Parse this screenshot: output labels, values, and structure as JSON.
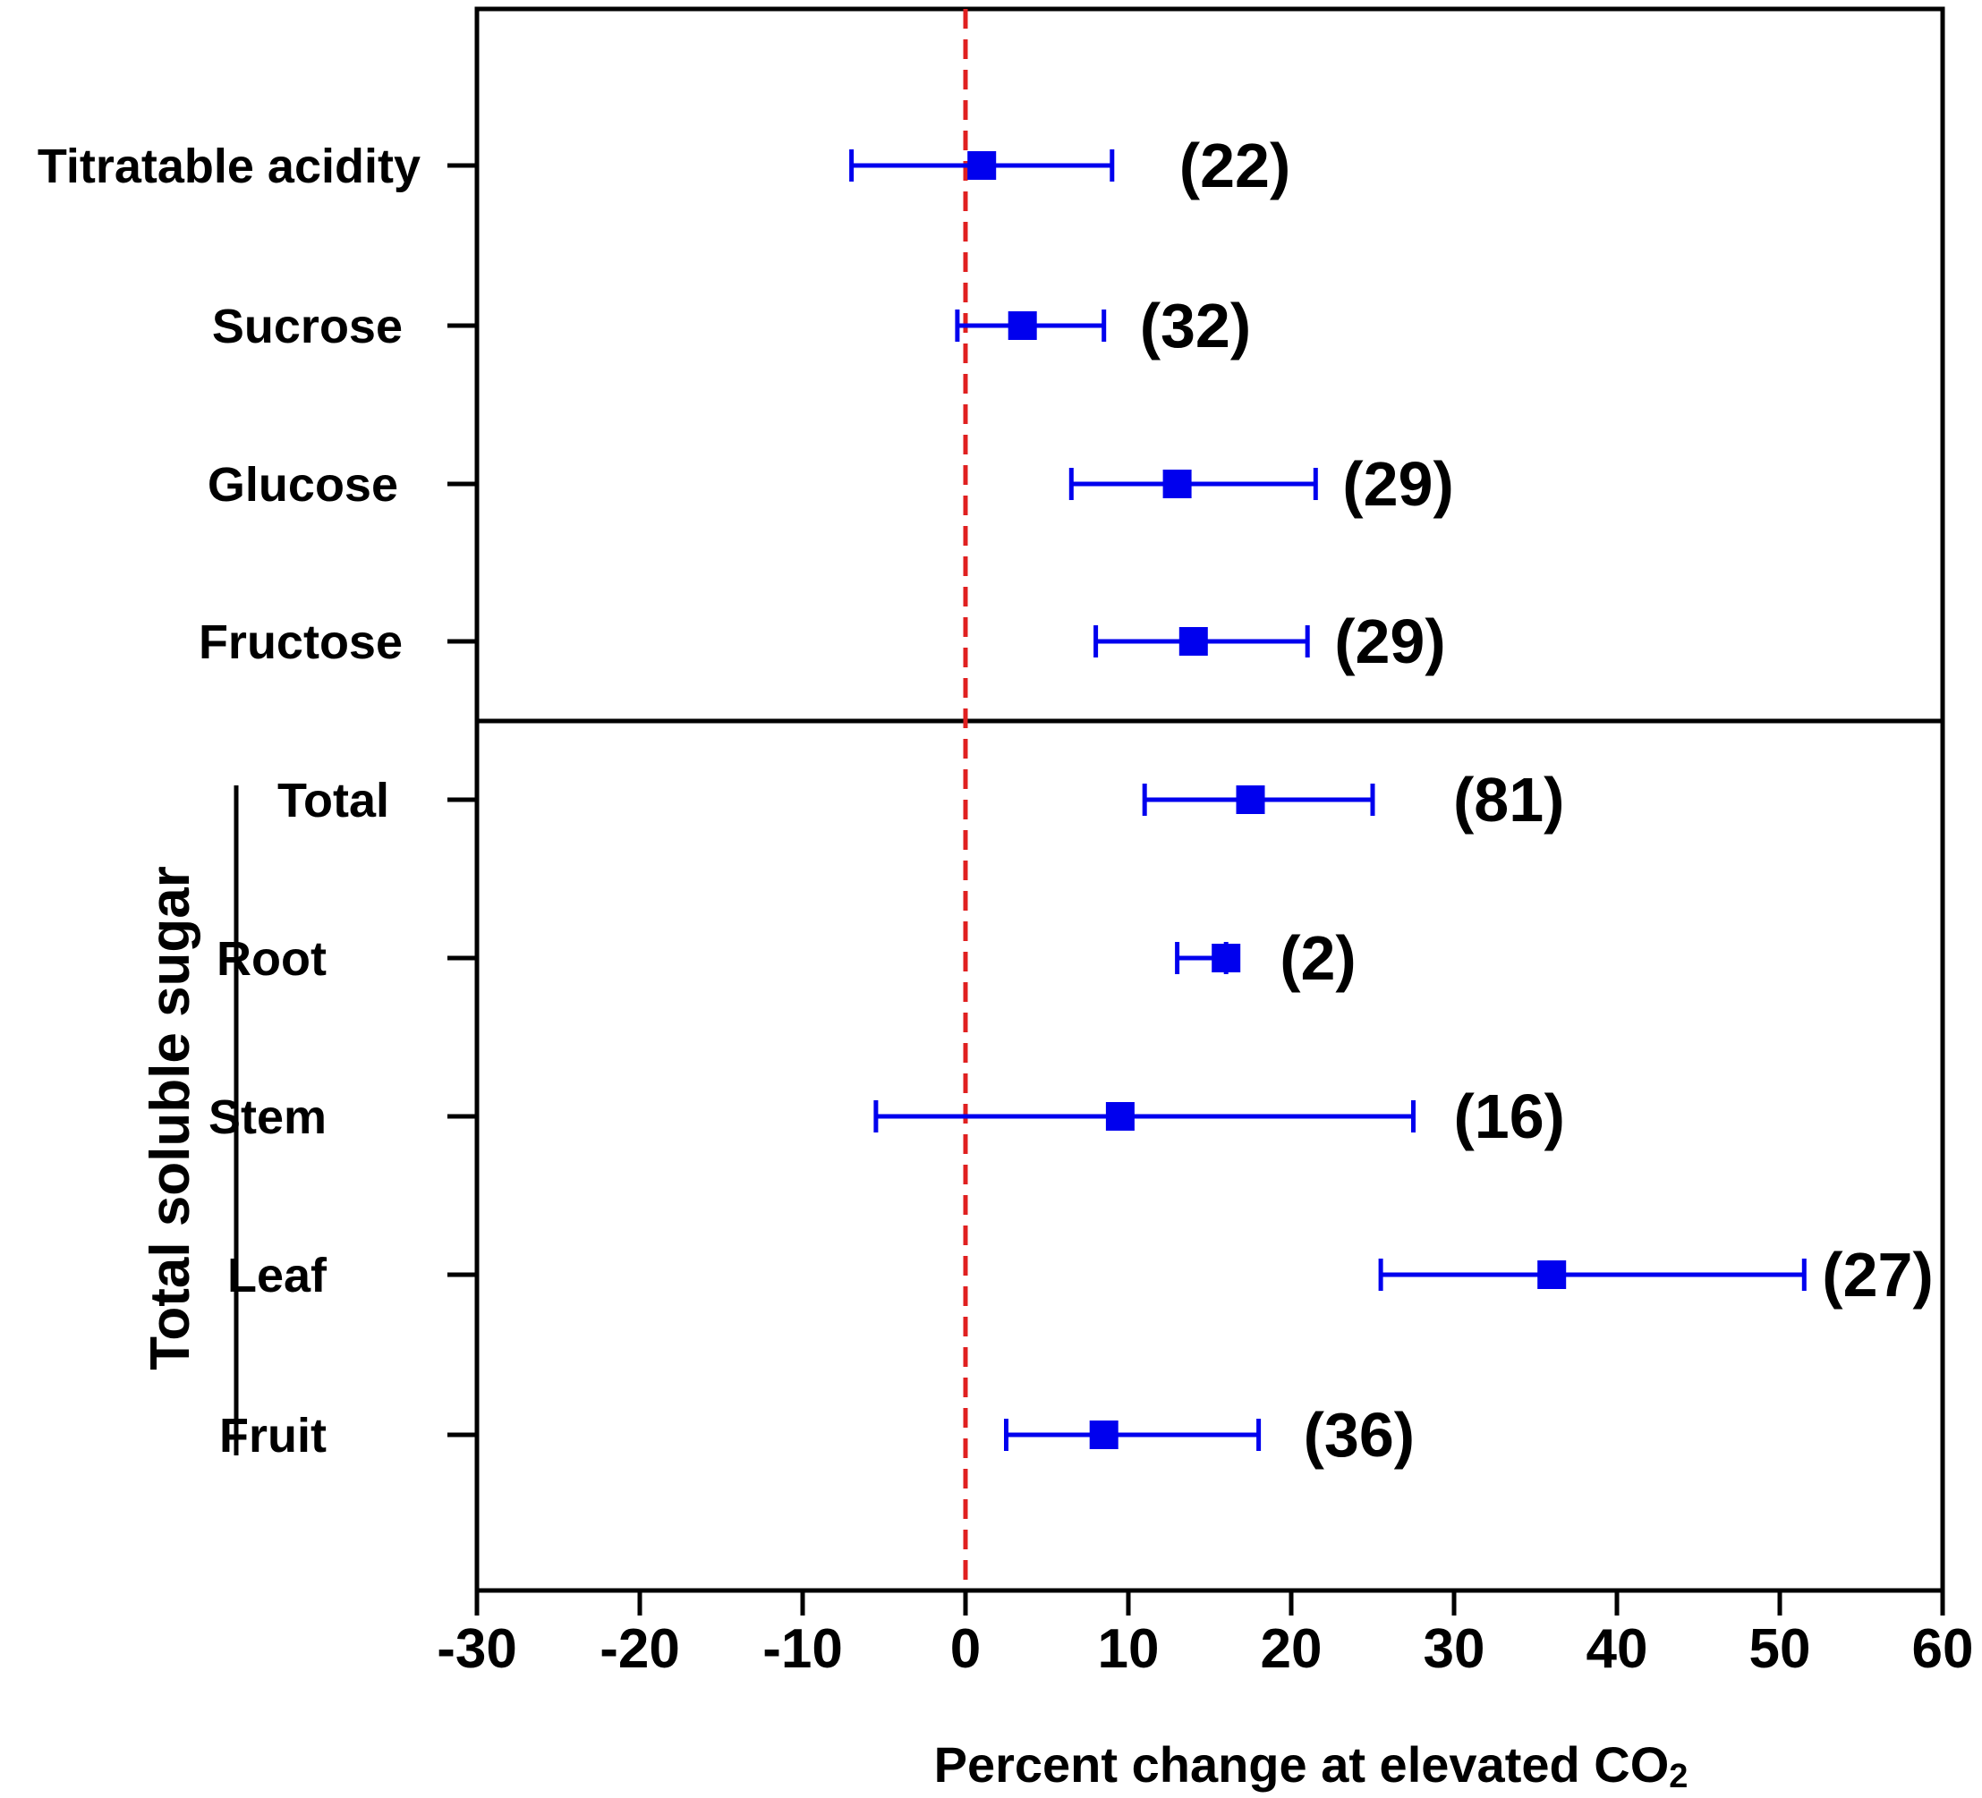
{
  "chart_data": {
    "type": "forest",
    "xlabel": "Percent change at elevated CO",
    "xlabel_subscript": "2",
    "xlim": [
      -30,
      60
    ],
    "xticks": [
      -30,
      -20,
      -10,
      0,
      10,
      20,
      30,
      40,
      50,
      60
    ],
    "reference_line": 0,
    "group_label": "Total soluble sugar",
    "rows": [
      {
        "label": "Titratable acidity",
        "mean": 1,
        "lower": -7,
        "upper": 9,
        "n": "(22)",
        "group": "top"
      },
      {
        "label": "Sucrose",
        "mean": 3.5,
        "lower": -0.5,
        "upper": 8.5,
        "n": "(32)",
        "group": "top"
      },
      {
        "label": "Glucose",
        "mean": 13,
        "lower": 6.5,
        "upper": 21.5,
        "n": "(29)",
        "group": "top"
      },
      {
        "label": "Fructose",
        "mean": 14,
        "lower": 8,
        "upper": 21,
        "n": "(29)",
        "group": "top"
      },
      {
        "label": "Total",
        "mean": 17.5,
        "lower": 11,
        "upper": 25,
        "n": "(81)",
        "group": "Total soluble sugar"
      },
      {
        "label": "Root",
        "mean": 16,
        "lower": 13,
        "upper": 16,
        "n": "(2)",
        "group": "Total soluble sugar"
      },
      {
        "label": "Stem",
        "mean": 9.5,
        "lower": -5.5,
        "upper": 27.5,
        "n": "(16)",
        "group": "Total soluble sugar"
      },
      {
        "label": "Leaf",
        "mean": 36,
        "lower": 25.5,
        "upper": 51.5,
        "n": "(27)",
        "group": "Total soluble sugar"
      },
      {
        "label": "Fruit",
        "mean": 8.5,
        "lower": 2.5,
        "upper": 18,
        "n": "(36)",
        "group": "Total soluble sugar"
      }
    ],
    "colors": {
      "marker": "#0000ee",
      "reference": "#e02020",
      "axis": "#000000"
    }
  }
}
